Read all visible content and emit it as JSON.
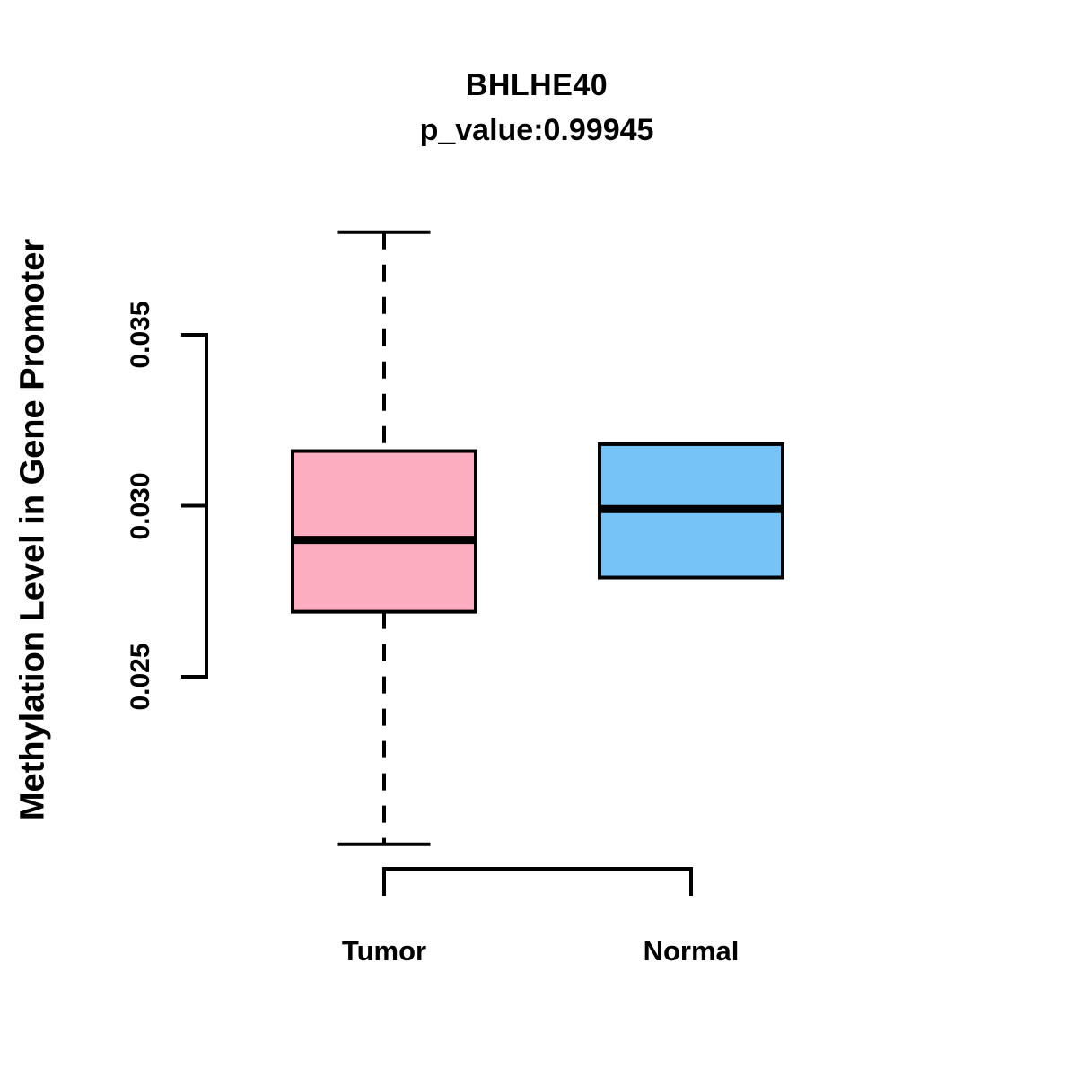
{
  "title": "BHLHE40",
  "subtitle": "p_value:0.99945",
  "ylabel": "Methylation Level in Gene Promoter",
  "colors": {
    "tumor_fill": "#FCAEC0",
    "normal_fill": "#76C3F7",
    "line": "#000000",
    "background": "#FFFFFF"
  },
  "chart_data": {
    "type": "boxplot",
    "title": "BHLHE40",
    "subtitle": "p_value:0.99945",
    "xlabel": "",
    "ylabel": "Methylation Level in Gene Promoter",
    "categories": [
      "Tumor",
      "Normal"
    ],
    "series": [
      {
        "name": "Tumor",
        "min": 0.0201,
        "q1": 0.0269,
        "median": 0.029,
        "q3": 0.0316,
        "max": 0.038,
        "whisker_style": "dashed",
        "color": "#FCAEC0"
      },
      {
        "name": "Normal",
        "min": 0.0279,
        "q1": 0.0279,
        "median": 0.0299,
        "q3": 0.0318,
        "max": 0.0318,
        "whisker_style": "none",
        "color": "#76C3F7"
      }
    ],
    "yticks": [
      0.025,
      0.03,
      0.035
    ],
    "ytick_labels": [
      "0.025",
      "0.030",
      "0.035"
    ],
    "ylim": [
      0.0201,
      0.038
    ],
    "grid": false,
    "legend": "none"
  }
}
